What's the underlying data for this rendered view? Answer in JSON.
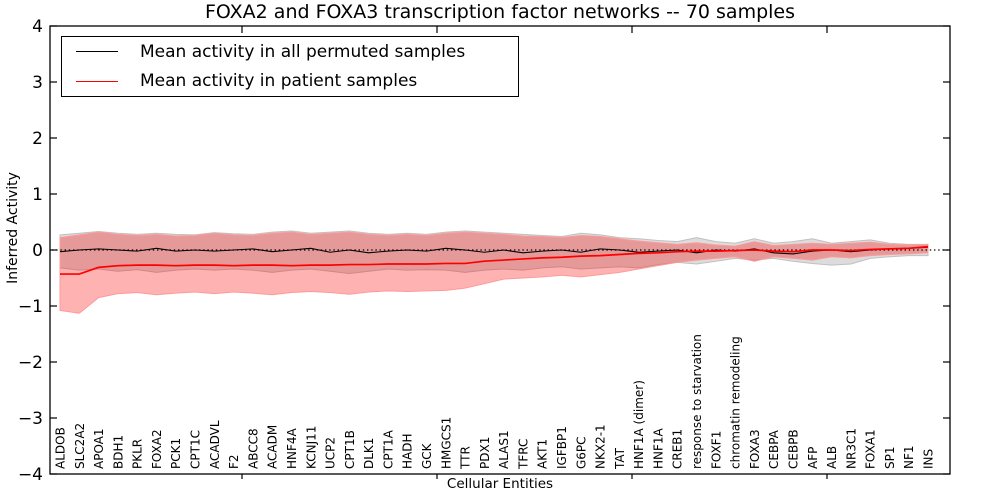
{
  "chart_data": {
    "type": "line",
    "title": "FOXA2 and FOXA3 transcription factor networks -- 70 samples",
    "xlabel": "Cellular Entities",
    "ylabel": "Inferred Activity",
    "ylim": [
      -4,
      4
    ],
    "ytick_values": [
      4,
      3,
      2,
      1,
      0,
      -1,
      -2,
      -3,
      -4
    ],
    "ytick_labels": [
      "4",
      "3",
      "2",
      "1",
      "0",
      "−1",
      "−2",
      "−3",
      "−4"
    ],
    "grid": false,
    "legend_position": "upper-left",
    "background_color": "#ffffff",
    "zero_line": {
      "value": 0,
      "style": "dotted",
      "color": "#000000"
    },
    "categories": [
      "ALDOB",
      "SLC2A2",
      "APOA1",
      "BDH1",
      "PKLR",
      "FOXA2",
      "PCK1",
      "CPT1C",
      "ACADVL",
      "F2",
      "ABCC8",
      "ACADM",
      "HNF4A",
      "KCNJ11",
      "UCP2",
      "CPT1B",
      "DLK1",
      "CPT1A",
      "HADH",
      "GCK",
      "HMGCS1",
      "TTR",
      "PDX1",
      "ALAS1",
      "TFRC",
      "AKT1",
      "IGFBP1",
      "G6PC",
      "NKX2-1",
      "TAT",
      "HNF1A (dimer)",
      "HNF1A",
      "CREB1",
      "response to starvation",
      "FOXF1",
      "chromatin remodeling",
      "FOXA3",
      "CEBPA",
      "CEBPB",
      "AFP",
      "ALB",
      "NR3C1",
      "FOXA1",
      "SP1",
      "NF1",
      "INS"
    ],
    "series": [
      {
        "name": "Mean activity in all permuted samples",
        "color": "#000000",
        "band_color": "#808080",
        "values": [
          -0.03,
          0.0,
          0.02,
          0.0,
          -0.02,
          0.03,
          -0.02,
          0.0,
          -0.02,
          0.0,
          0.02,
          -0.03,
          0.0,
          0.03,
          -0.04,
          0.0,
          -0.05,
          -0.02,
          0.0,
          -0.02,
          0.03,
          0.0,
          -0.04,
          0.0,
          -0.05,
          -0.02,
          0.0,
          -0.04,
          0.02,
          0.0,
          -0.04,
          -0.02,
          0.0,
          -0.05,
          0.0,
          -0.02,
          0.02,
          -0.05,
          -0.07,
          -0.02,
          0.0,
          -0.03,
          0.0,
          0.02,
          0.03,
          0.05
        ],
        "band_upper": [
          0.27,
          0.3,
          0.33,
          0.3,
          0.28,
          0.3,
          0.28,
          0.27,
          0.31,
          0.29,
          0.28,
          0.32,
          0.34,
          0.3,
          0.32,
          0.34,
          0.3,
          0.28,
          0.3,
          0.28,
          0.32,
          0.34,
          0.32,
          0.3,
          0.28,
          0.26,
          0.24,
          0.3,
          0.27,
          0.22,
          0.2,
          0.17,
          0.15,
          0.22,
          0.15,
          0.12,
          0.2,
          0.12,
          0.15,
          0.2,
          0.12,
          0.15,
          0.18,
          0.12,
          0.1,
          0.1
        ],
        "band_lower": [
          -0.32,
          -0.36,
          -0.34,
          -0.38,
          -0.35,
          -0.4,
          -0.36,
          -0.34,
          -0.36,
          -0.34,
          -0.36,
          -0.4,
          -0.36,
          -0.34,
          -0.38,
          -0.42,
          -0.38,
          -0.34,
          -0.36,
          -0.35,
          -0.36,
          -0.4,
          -0.36,
          -0.34,
          -0.36,
          -0.32,
          -0.3,
          -0.34,
          -0.32,
          -0.3,
          -0.32,
          -0.26,
          -0.22,
          -0.25,
          -0.2,
          -0.15,
          -0.18,
          -0.15,
          -0.2,
          -0.24,
          -0.27,
          -0.25,
          -0.15,
          -0.12,
          -0.1,
          -0.1
        ]
      },
      {
        "name": "Mean activity in patient samples",
        "color": "#ff0000",
        "band_color": "#ff0000",
        "values": [
          -0.43,
          -0.43,
          -0.31,
          -0.28,
          -0.27,
          -0.27,
          -0.28,
          -0.27,
          -0.27,
          -0.28,
          -0.27,
          -0.27,
          -0.28,
          -0.27,
          -0.27,
          -0.26,
          -0.26,
          -0.25,
          -0.25,
          -0.25,
          -0.24,
          -0.24,
          -0.2,
          -0.18,
          -0.16,
          -0.14,
          -0.13,
          -0.11,
          -0.1,
          -0.08,
          -0.06,
          -0.05,
          -0.03,
          -0.02,
          -0.02,
          -0.01,
          0.0,
          -0.02,
          -0.03,
          0.0,
          0.0,
          -0.01,
          0.01,
          0.02,
          0.03,
          0.06
        ],
        "band_upper": [
          0.22,
          0.27,
          0.32,
          0.28,
          0.26,
          0.28,
          0.25,
          0.26,
          0.3,
          0.27,
          0.26,
          0.3,
          0.32,
          0.28,
          0.3,
          0.32,
          0.28,
          0.26,
          0.28,
          0.26,
          0.3,
          0.32,
          0.3,
          0.28,
          0.25,
          0.24,
          0.22,
          0.26,
          0.24,
          0.2,
          0.16,
          0.13,
          0.1,
          0.13,
          0.09,
          0.07,
          0.15,
          0.08,
          0.1,
          0.12,
          0.1,
          0.12,
          0.14,
          0.1,
          0.09,
          0.1
        ],
        "band_lower": [
          -1.08,
          -1.13,
          -0.85,
          -0.78,
          -0.76,
          -0.8,
          -0.77,
          -0.75,
          -0.78,
          -0.75,
          -0.77,
          -0.8,
          -0.76,
          -0.74,
          -0.76,
          -0.79,
          -0.75,
          -0.73,
          -0.74,
          -0.73,
          -0.72,
          -0.68,
          -0.6,
          -0.52,
          -0.5,
          -0.48,
          -0.45,
          -0.48,
          -0.44,
          -0.4,
          -0.34,
          -0.28,
          -0.22,
          -0.18,
          -0.15,
          -0.12,
          -0.2,
          -0.12,
          -0.15,
          -0.18,
          -0.12,
          -0.14,
          -0.1,
          -0.08,
          -0.07,
          -0.05
        ]
      }
    ]
  }
}
